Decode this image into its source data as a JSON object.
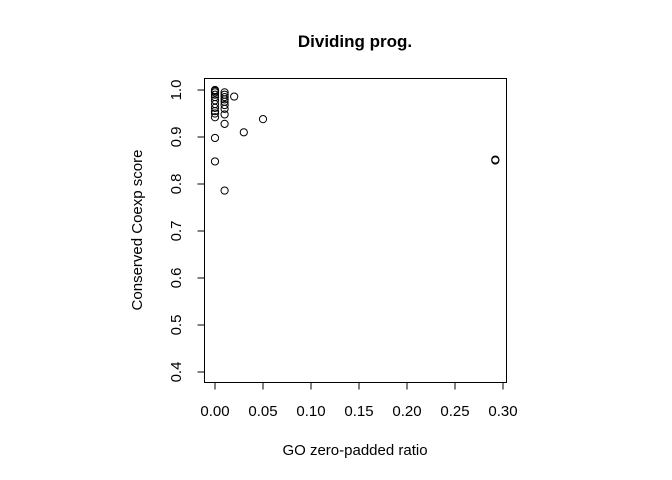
{
  "chart_data": {
    "type": "scatter",
    "title": "Dividing prog.",
    "xlabel": "GO zero-padded ratio",
    "ylabel": "Conserved Coexp score",
    "xlim": [
      0.0,
      0.3
    ],
    "ylim": [
      0.4,
      1.0
    ],
    "x_ticks": [
      "0.00",
      "0.05",
      "0.10",
      "0.15",
      "0.20",
      "0.25",
      "0.30"
    ],
    "y_ticks": [
      "0.4",
      "0.5",
      "0.6",
      "0.7",
      "0.8",
      "0.9",
      "1.0"
    ],
    "grid": false,
    "legend": "none",
    "marker": "open-circle",
    "points": [
      {
        "x": 0.0,
        "y": 1.0
      },
      {
        "x": 0.0,
        "y": 0.998
      },
      {
        "x": 0.0,
        "y": 0.995
      },
      {
        "x": 0.0,
        "y": 0.99
      },
      {
        "x": 0.0,
        "y": 0.985
      },
      {
        "x": 0.0,
        "y": 0.978
      },
      {
        "x": 0.0,
        "y": 0.97
      },
      {
        "x": 0.0,
        "y": 0.962
      },
      {
        "x": 0.0,
        "y": 0.955
      },
      {
        "x": 0.0,
        "y": 0.95
      },
      {
        "x": 0.0,
        "y": 0.942
      },
      {
        "x": 0.0,
        "y": 0.898
      },
      {
        "x": 0.0,
        "y": 0.848
      },
      {
        "x": 0.01,
        "y": 0.995
      },
      {
        "x": 0.01,
        "y": 0.99
      },
      {
        "x": 0.01,
        "y": 0.985
      },
      {
        "x": 0.01,
        "y": 0.98
      },
      {
        "x": 0.01,
        "y": 0.975
      },
      {
        "x": 0.01,
        "y": 0.968
      },
      {
        "x": 0.01,
        "y": 0.96
      },
      {
        "x": 0.01,
        "y": 0.948
      },
      {
        "x": 0.01,
        "y": 0.928
      },
      {
        "x": 0.01,
        "y": 0.786
      },
      {
        "x": 0.02,
        "y": 0.986
      },
      {
        "x": 0.03,
        "y": 0.91
      },
      {
        "x": 0.05,
        "y": 0.938
      },
      {
        "x": 0.292,
        "y": 0.852
      },
      {
        "x": 0.292,
        "y": 0.85
      }
    ]
  }
}
